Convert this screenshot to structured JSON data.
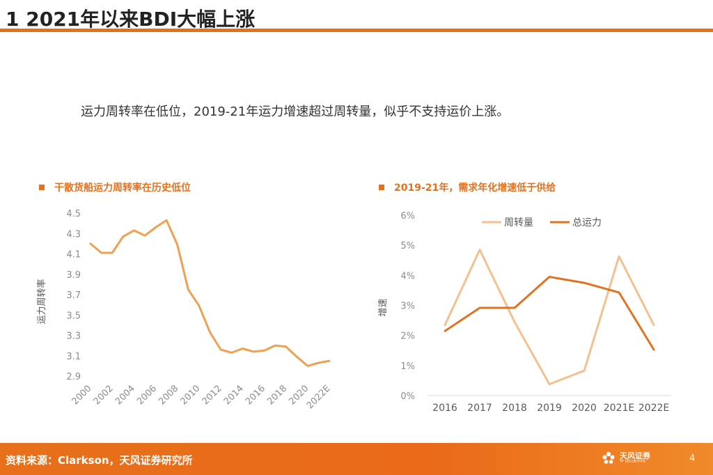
{
  "header": {
    "title": "1 2021年以来BDI大幅上涨"
  },
  "subtitle": "运力周转率在低位，2019-21年运力增速超过周转量，似乎不支持运价上涨。",
  "footer": {
    "source": "资料来源：Clarkson，天风证券研究所",
    "brand": "天风证券",
    "brand_en": "TF SECURITIES",
    "page": "4"
  },
  "colors": {
    "accent": "#e8701a",
    "line_dark": "#e07322",
    "line_light": "#f5c08e",
    "axis_text": "#8c8c8c"
  },
  "chart_data": [
    {
      "type": "line",
      "title": "干散货船运力周转率在历史低位",
      "ylabel": "运力周转率",
      "xlabel": "",
      "ylim": [
        2.9,
        4.5
      ],
      "yticks": [
        "4.5",
        "4.3",
        "4.1",
        "3.9",
        "3.7",
        "3.5",
        "3.3",
        "3.1",
        "2.9"
      ],
      "x": [
        "2000",
        "2001",
        "2002",
        "2003",
        "2004",
        "2005",
        "2006",
        "2007",
        "2008",
        "2009",
        "2010",
        "2011",
        "2012",
        "2013",
        "2014",
        "2015",
        "2016",
        "2017",
        "2018",
        "2019",
        "2020",
        "2021",
        "2022E"
      ],
      "xtick_labels": [
        "2000",
        "2002",
        "2004",
        "2006",
        "2008",
        "2010",
        "2012",
        "2014",
        "2016",
        "2018",
        "2020",
        "2022E"
      ],
      "series": [
        {
          "name": "运力周转率",
          "values": [
            4.2,
            4.11,
            4.11,
            4.27,
            4.33,
            4.28,
            4.36,
            4.43,
            4.19,
            3.75,
            3.59,
            3.33,
            3.16,
            3.13,
            3.17,
            3.14,
            3.15,
            3.2,
            3.19,
            3.09,
            3.0,
            3.03,
            3.05
          ]
        }
      ]
    },
    {
      "type": "line",
      "title": "2019-21年，需求年化增速低于供给",
      "ylabel": "增速",
      "xlabel": "",
      "ylim": [
        0,
        6
      ],
      "yticks": [
        "6%",
        "5%",
        "4%",
        "3%",
        "2%",
        "1%",
        "0%"
      ],
      "x": [
        "2016",
        "2017",
        "2018",
        "2019",
        "2020",
        "2021E",
        "2022E"
      ],
      "legend": [
        "周转量",
        "总运力"
      ],
      "series": [
        {
          "name": "周转量",
          "values": [
            2.35,
            4.85,
            2.45,
            0.38,
            0.83,
            4.63,
            2.35
          ]
        },
        {
          "name": "总运力",
          "values": [
            2.15,
            2.92,
            2.92,
            3.95,
            3.75,
            3.43,
            1.53
          ]
        }
      ]
    }
  ]
}
